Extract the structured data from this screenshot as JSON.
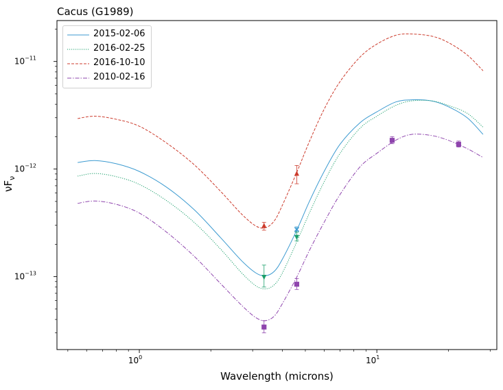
{
  "chart_data": {
    "type": "line",
    "title": "Cacus (G1989)",
    "xlabel": "Wavelength (microns)",
    "ylabel": "νF",
    "ylabel_sub": "ν",
    "xscale": "log",
    "yscale": "log",
    "xlim": [
      0.45,
      32
    ],
    "ylim": [
      2.1e-14,
      2.4e-11
    ],
    "grid": false,
    "legend_position": "top-left",
    "x_ticks": [
      {
        "value": 1,
        "label": "10",
        "exp": "0"
      },
      {
        "value": 10,
        "label": "10",
        "exp": "1"
      }
    ],
    "y_ticks": [
      {
        "value": 1e-13,
        "label": "10",
        "exp": "−13"
      },
      {
        "value": 1e-12,
        "label": "10",
        "exp": "−12"
      },
      {
        "value": 1e-11,
        "label": "10",
        "exp": "−11"
      }
    ],
    "series": [
      {
        "name": "2015-02-06",
        "color": "#3b9ad0",
        "dash": "solid",
        "marker": "x",
        "curve": [
          [
            0.55,
            1.15e-12
          ],
          [
            0.65,
            1.2e-12
          ],
          [
            0.8,
            1.12e-12
          ],
          [
            1.0,
            9.5e-13
          ],
          [
            1.3,
            6.8e-13
          ],
          [
            1.7,
            4.2e-13
          ],
          [
            2.2,
            2.3e-13
          ],
          [
            2.7,
            1.4e-13
          ],
          [
            3.1,
            1.08e-13
          ],
          [
            3.4,
            1.02e-13
          ],
          [
            3.7,
            1.12e-13
          ],
          [
            4.0,
            1.45e-13
          ],
          [
            4.6,
            2.7e-13
          ],
          [
            5.2,
            5e-13
          ],
          [
            6.0,
            9.5e-13
          ],
          [
            7.0,
            1.7e-12
          ],
          [
            8.5,
            2.7e-12
          ],
          [
            10,
            3.4e-12
          ],
          [
            12,
            4.2e-12
          ],
          [
            14,
            4.4e-12
          ],
          [
            17,
            4.3e-12
          ],
          [
            20,
            3.8e-12
          ],
          [
            24,
            3e-12
          ],
          [
            28,
            2.1e-12
          ]
        ],
        "points": [
          {
            "x": 4.6,
            "y": 2.75e-13,
            "yerr_lo": 2.6e-13,
            "yerr_hi": 2.9e-13
          }
        ]
      },
      {
        "name": "2016-02-25",
        "color": "#1a9e6a",
        "dash": "dotted",
        "marker": "triangle-down",
        "curve": [
          [
            0.55,
            8.6e-13
          ],
          [
            0.65,
            9.1e-13
          ],
          [
            0.8,
            8.5e-13
          ],
          [
            1.0,
            7.2e-13
          ],
          [
            1.3,
            5.1e-13
          ],
          [
            1.7,
            3.2e-13
          ],
          [
            2.2,
            1.8e-13
          ],
          [
            2.7,
            1.08e-13
          ],
          [
            3.1,
            8.2e-14
          ],
          [
            3.4,
            7.7e-14
          ],
          [
            3.7,
            8.4e-14
          ],
          [
            4.0,
            1.08e-13
          ],
          [
            4.6,
            2.1e-13
          ],
          [
            5.2,
            3.9e-13
          ],
          [
            6.0,
            7.6e-13
          ],
          [
            7.0,
            1.4e-12
          ],
          [
            8.5,
            2.4e-12
          ],
          [
            10,
            3.1e-12
          ],
          [
            12,
            3.9e-12
          ],
          [
            14,
            4.3e-12
          ],
          [
            17,
            4.3e-12
          ],
          [
            20,
            3.9e-12
          ],
          [
            24,
            3.3e-12
          ],
          [
            28,
            2.45e-12
          ]
        ],
        "points": [
          {
            "x": 3.35,
            "y": 1e-13,
            "yerr_lo": 8e-14,
            "yerr_hi": 1.28e-13
          },
          {
            "x": 4.6,
            "y": 2.35e-13,
            "yerr_lo": 2.15e-13,
            "yerr_hi": 2.6e-13
          }
        ]
      },
      {
        "name": "2016-10-10",
        "color": "#cc3b2c",
        "dash": "dashed",
        "marker": "triangle-up",
        "curve": [
          [
            0.55,
            2.95e-12
          ],
          [
            0.65,
            3.1e-12
          ],
          [
            0.8,
            2.9e-12
          ],
          [
            1.0,
            2.5e-12
          ],
          [
            1.3,
            1.75e-12
          ],
          [
            1.7,
            1.1e-12
          ],
          [
            2.2,
            6.2e-13
          ],
          [
            2.7,
            3.8e-13
          ],
          [
            3.1,
            2.95e-13
          ],
          [
            3.4,
            2.85e-13
          ],
          [
            3.7,
            3.3e-13
          ],
          [
            4.0,
            4.6e-13
          ],
          [
            4.6,
            9.3e-13
          ],
          [
            5.2,
            1.8e-12
          ],
          [
            6.0,
            3.6e-12
          ],
          [
            7.0,
            6.5e-12
          ],
          [
            8.5,
            1.1e-11
          ],
          [
            10,
            1.45e-11
          ],
          [
            12,
            1.75e-11
          ],
          [
            14,
            1.8e-11
          ],
          [
            17,
            1.72e-11
          ],
          [
            20,
            1.5e-11
          ],
          [
            24,
            1.15e-11
          ],
          [
            28,
            8.2e-12
          ]
        ],
        "points": [
          {
            "x": 3.35,
            "y": 2.95e-13,
            "yerr_lo": 2.7e-13,
            "yerr_hi": 3.2e-13
          },
          {
            "x": 4.6,
            "y": 9e-13,
            "yerr_lo": 7.3e-13,
            "yerr_hi": 1.08e-12
          }
        ]
      },
      {
        "name": "2010-02-16",
        "color": "#8e44ad",
        "dash": "dashdot",
        "marker": "square",
        "curve": [
          [
            0.55,
            4.8e-13
          ],
          [
            0.65,
            5.05e-13
          ],
          [
            0.8,
            4.7e-13
          ],
          [
            1.0,
            3.9e-13
          ],
          [
            1.3,
            2.6e-13
          ],
          [
            1.7,
            1.55e-13
          ],
          [
            2.2,
            8.6e-14
          ],
          [
            2.7,
            5.4e-14
          ],
          [
            3.1,
            4.15e-14
          ],
          [
            3.4,
            3.9e-14
          ],
          [
            3.7,
            4.3e-14
          ],
          [
            4.0,
            5.6e-14
          ],
          [
            4.6,
            9.9e-14
          ],
          [
            5.2,
            1.75e-13
          ],
          [
            6.0,
            3.2e-13
          ],
          [
            7.0,
            5.8e-13
          ],
          [
            8.5,
            1.05e-12
          ],
          [
            10,
            1.4e-12
          ],
          [
            12,
            1.85e-12
          ],
          [
            14,
            2.1e-12
          ],
          [
            17,
            2.05e-12
          ],
          [
            20,
            1.85e-12
          ],
          [
            24,
            1.55e-12
          ],
          [
            28,
            1.28e-12
          ]
        ],
        "points": [
          {
            "x": 3.35,
            "y": 3.4e-14,
            "yerr_lo": 3e-14,
            "yerr_hi": 3.9e-14
          },
          {
            "x": 4.6,
            "y": 8.5e-14,
            "yerr_lo": 7.6e-14,
            "yerr_hi": 9.6e-14
          },
          {
            "x": 11.6,
            "y": 1.85e-12,
            "yerr_lo": 1.72e-12,
            "yerr_hi": 2e-12
          },
          {
            "x": 22.1,
            "y": 1.7e-12,
            "yerr_lo": 1.6e-12,
            "yerr_hi": 1.82e-12
          }
        ]
      }
    ]
  }
}
